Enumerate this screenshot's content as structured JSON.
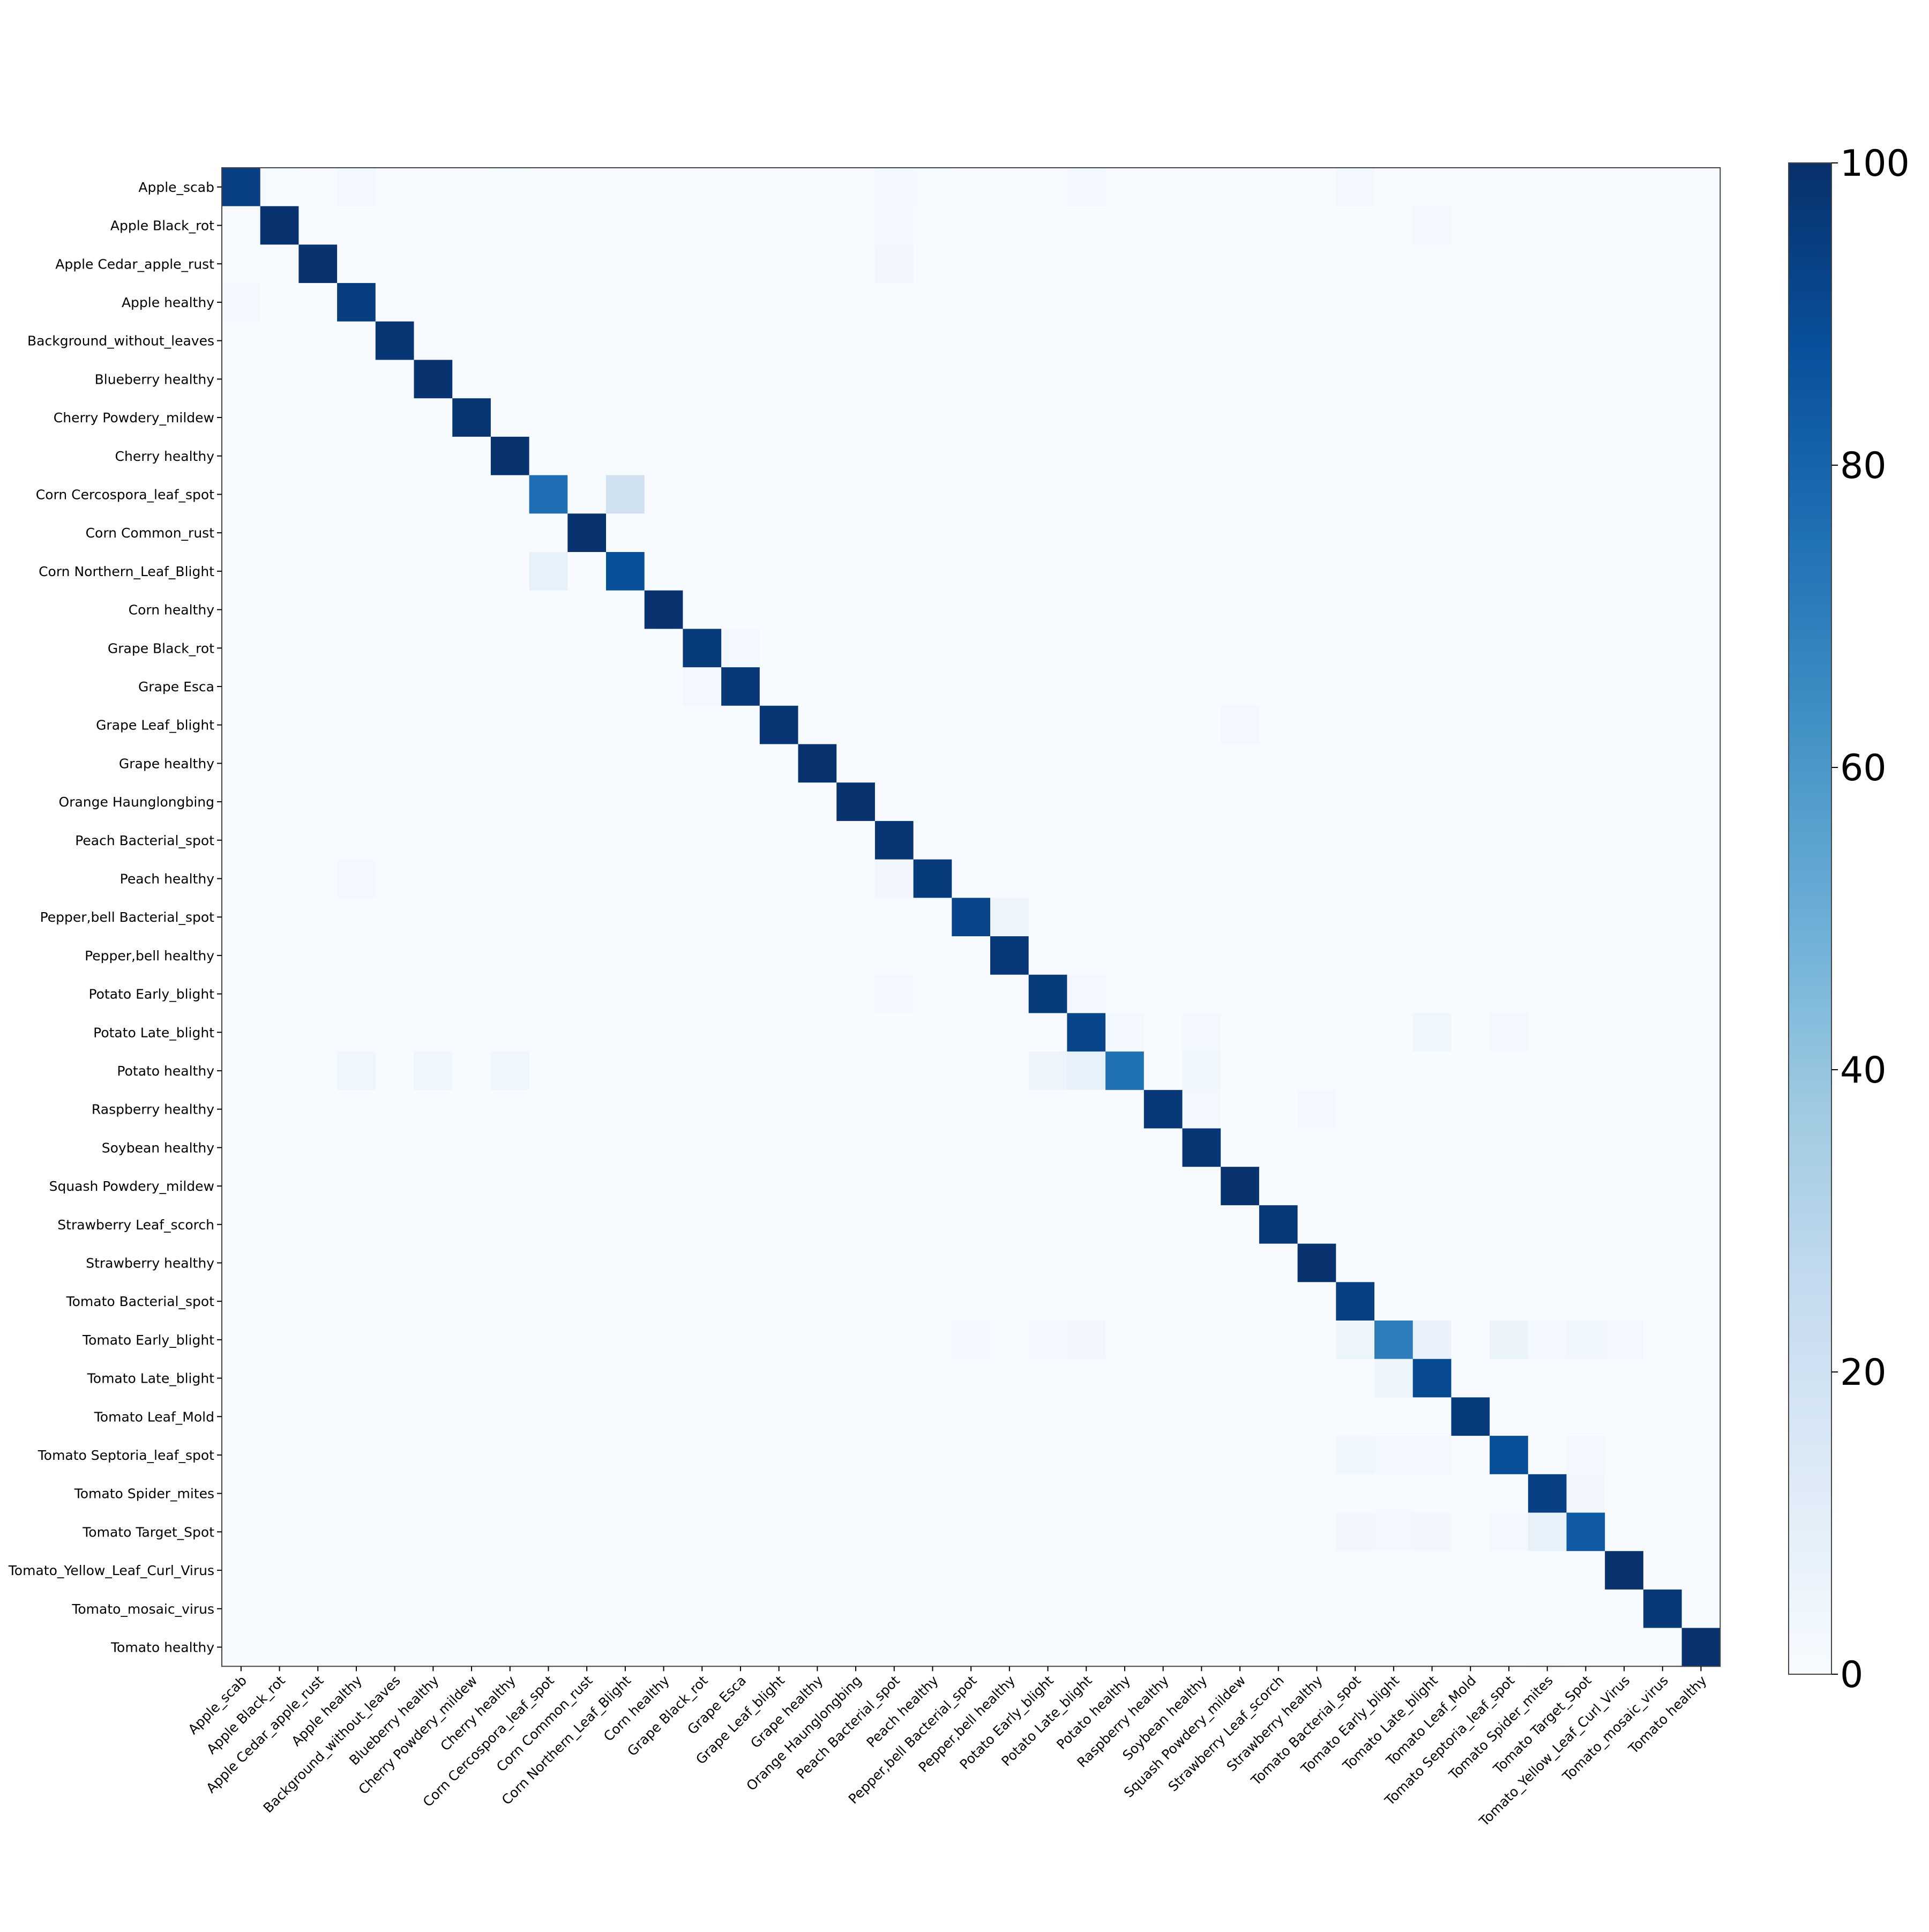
{
  "chart_data": {
    "type": "heatmap",
    "title": "",
    "xlabel": "",
    "ylabel": "",
    "labels": [
      "Apple_scab",
      "Apple Black_rot",
      "Apple Cedar_apple_rust",
      "Apple healthy",
      "Background_without_leaves",
      "Blueberry healthy",
      "Cherry Powdery_mildew",
      "Cherry healthy",
      "Corn Cercospora_leaf_spot",
      "Corn Common_rust",
      "Corn Northern_Leaf_Blight",
      "Corn healthy",
      "Grape Black_rot",
      "Grape Esca",
      "Grape Leaf_blight",
      "Grape healthy",
      "Orange Haunglongbing",
      "Peach Bacterial_spot",
      "Peach healthy",
      "Pepper,bell Bacterial_spot",
      "Pepper,bell healthy",
      "Potato Early_blight",
      "Potato Late_blight",
      "Potato healthy",
      "Raspberry healthy",
      "Soybean healthy",
      "Squash Powdery_mildew",
      "Strawberry Leaf_scorch",
      "Strawberry healthy",
      "Tomato Bacterial_spot",
      "Tomato Early_blight",
      "Tomato Late_blight",
      "Tomato Leaf_Mold",
      "Tomato Septoria_leaf_spot",
      "Tomato Spider_mites",
      "Tomato Target_Spot",
      "Tomato_Yellow_Leaf_Curl_Virus",
      "Tomato_mosaic_virus",
      "Tomato healthy"
    ],
    "diagonal": [
      94,
      99,
      99,
      95,
      98,
      99,
      98,
      99,
      76,
      99,
      88,
      99,
      96,
      97,
      98,
      99,
      99,
      98,
      96,
      92,
      97,
      96,
      92,
      75,
      97,
      98,
      99,
      97,
      99,
      94,
      70,
      90,
      96,
      88,
      94,
      84,
      99,
      97,
      99
    ],
    "off_diagonal": [
      {
        "row": 0,
        "col": 1,
        "value": 1
      },
      {
        "row": 0,
        "col": 3,
        "value": 2
      },
      {
        "row": 0,
        "col": 7,
        "value": 1
      },
      {
        "row": 0,
        "col": 17,
        "value": 2
      },
      {
        "row": 0,
        "col": 18,
        "value": 1
      },
      {
        "row": 0,
        "col": 22,
        "value": 2
      },
      {
        "row": 0,
        "col": 29,
        "value": 2
      },
      {
        "row": 1,
        "col": 17,
        "value": 2
      },
      {
        "row": 1,
        "col": 19,
        "value": 1
      },
      {
        "row": 1,
        "col": 31,
        "value": 2
      },
      {
        "row": 2,
        "col": 17,
        "value": 3
      },
      {
        "row": 3,
        "col": 0,
        "value": 2
      },
      {
        "row": 4,
        "col": 10,
        "value": 1
      },
      {
        "row": 4,
        "col": 26,
        "value": 1
      },
      {
        "row": 6,
        "col": 3,
        "value": 1
      },
      {
        "row": 7,
        "col": 20,
        "value": 1
      },
      {
        "row": 7,
        "col": 26,
        "value": 1
      },
      {
        "row": 8,
        "col": 10,
        "value": 20
      },
      {
        "row": 10,
        "col": 8,
        "value": 8
      },
      {
        "row": 10,
        "col": 17,
        "value": 1
      },
      {
        "row": 12,
        "col": 13,
        "value": 2
      },
      {
        "row": 13,
        "col": 12,
        "value": 2
      },
      {
        "row": 14,
        "col": 26,
        "value": 2
      },
      {
        "row": 18,
        "col": 3,
        "value": 2
      },
      {
        "row": 18,
        "col": 17,
        "value": 3
      },
      {
        "row": 19,
        "col": 20,
        "value": 5
      },
      {
        "row": 21,
        "col": 17,
        "value": 2
      },
      {
        "row": 21,
        "col": 22,
        "value": 2
      },
      {
        "row": 22,
        "col": 23,
        "value": 2
      },
      {
        "row": 22,
        "col": 25,
        "value": 2
      },
      {
        "row": 22,
        "col": 31,
        "value": 4
      },
      {
        "row": 22,
        "col": 33,
        "value": 2
      },
      {
        "row": 23,
        "col": 3,
        "value": 4
      },
      {
        "row": 23,
        "col": 5,
        "value": 4
      },
      {
        "row": 23,
        "col": 7,
        "value": 4
      },
      {
        "row": 23,
        "col": 21,
        "value": 5
      },
      {
        "row": 23,
        "col": 22,
        "value": 8
      },
      {
        "row": 23,
        "col": 25,
        "value": 4
      },
      {
        "row": 24,
        "col": 25,
        "value": 2
      },
      {
        "row": 24,
        "col": 28,
        "value": 2
      },
      {
        "row": 29,
        "col": 33,
        "value": 1
      },
      {
        "row": 30,
        "col": 19,
        "value": 2
      },
      {
        "row": 30,
        "col": 21,
        "value": 2
      },
      {
        "row": 30,
        "col": 22,
        "value": 3
      },
      {
        "row": 30,
        "col": 29,
        "value": 5
      },
      {
        "row": 30,
        "col": 31,
        "value": 7
      },
      {
        "row": 30,
        "col": 33,
        "value": 6
      },
      {
        "row": 30,
        "col": 34,
        "value": 2
      },
      {
        "row": 30,
        "col": 35,
        "value": 4
      },
      {
        "row": 30,
        "col": 36,
        "value": 2
      },
      {
        "row": 31,
        "col": 30,
        "value": 5
      },
      {
        "row": 31,
        "col": 25,
        "value": 1
      },
      {
        "row": 32,
        "col": 17,
        "value": 1
      },
      {
        "row": 32,
        "col": 25,
        "value": 1
      },
      {
        "row": 33,
        "col": 29,
        "value": 4
      },
      {
        "row": 33,
        "col": 30,
        "value": 2
      },
      {
        "row": 33,
        "col": 31,
        "value": 2
      },
      {
        "row": 33,
        "col": 35,
        "value": 2
      },
      {
        "row": 34,
        "col": 30,
        "value": 1
      },
      {
        "row": 34,
        "col": 35,
        "value": 3
      },
      {
        "row": 35,
        "col": 29,
        "value": 3
      },
      {
        "row": 35,
        "col": 30,
        "value": 2
      },
      {
        "row": 35,
        "col": 31,
        "value": 3
      },
      {
        "row": 35,
        "col": 33,
        "value": 2
      },
      {
        "row": 35,
        "col": 34,
        "value": 8
      },
      {
        "row": 37,
        "col": 33,
        "value": 1
      },
      {
        "row": 38,
        "col": 34,
        "value": 1
      }
    ],
    "colorbar": {
      "min": 0,
      "max": 100,
      "ticks": [
        "0",
        "20",
        "40",
        "60",
        "80",
        "100"
      ],
      "colormap": "Blues",
      "colors": [
        "#f7fbff",
        "#deebf7",
        "#c6dbef",
        "#9ecae1",
        "#6baed6",
        "#4292c6",
        "#2171b5",
        "#08519c",
        "#08306b"
      ]
    }
  }
}
